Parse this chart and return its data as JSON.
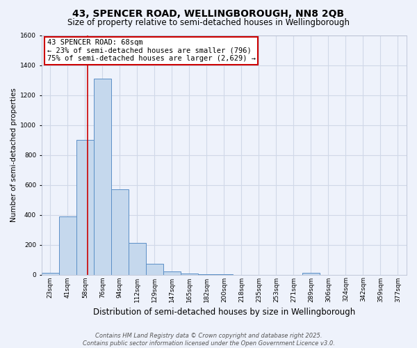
{
  "title": "43, SPENCER ROAD, WELLINGBOROUGH, NN8 2QB",
  "subtitle": "Size of property relative to semi-detached houses in Wellingborough",
  "xlabel": "Distribution of semi-detached houses by size in Wellingborough",
  "ylabel": "Number of semi-detached properties",
  "footer_line1": "Contains HM Land Registry data © Crown copyright and database right 2025.",
  "footer_line2": "Contains public sector information licensed under the Open Government Licence v3.0.",
  "bar_labels": [
    "23sqm",
    "41sqm",
    "58sqm",
    "76sqm",
    "94sqm",
    "112sqm",
    "129sqm",
    "147sqm",
    "165sqm",
    "182sqm",
    "200sqm",
    "218sqm",
    "235sqm",
    "253sqm",
    "271sqm",
    "289sqm",
    "306sqm",
    "324sqm",
    "342sqm",
    "359sqm",
    "377sqm"
  ],
  "bar_values": [
    10,
    390,
    900,
    1310,
    570,
    210,
    70,
    20,
    5,
    2,
    1,
    0,
    0,
    0,
    0,
    10,
    0,
    0,
    0,
    0,
    0
  ],
  "bar_color": "#c5d8ed",
  "bar_edge_color": "#5b8fc7",
  "property_line_bin_index": 2.15,
  "annotation_title": "43 SPENCER ROAD: 68sqm",
  "annotation_line1": "← 23% of semi-detached houses are smaller (796)",
  "annotation_line2": "75% of semi-detached houses are larger (2,629) →",
  "annotation_box_color": "#ffffff",
  "annotation_border_color": "#cc0000",
  "line_color": "#cc0000",
  "ylim": [
    0,
    1600
  ],
  "yticks": [
    0,
    200,
    400,
    600,
    800,
    1000,
    1200,
    1400,
    1600
  ],
  "background_color": "#eef2fb",
  "grid_color": "#d0d8e8",
  "title_fontsize": 10,
  "subtitle_fontsize": 8.5,
  "xlabel_fontsize": 8.5,
  "ylabel_fontsize": 7.5,
  "tick_fontsize": 6.5,
  "footer_fontsize": 6.0,
  "annot_fontsize": 7.5
}
